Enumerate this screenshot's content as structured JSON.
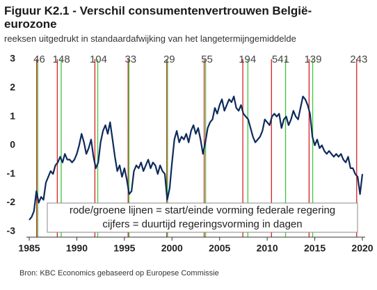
{
  "chart_data": {
    "type": "line",
    "title": "Figuur K2.1 - Verschil consumentenvertrouwen België-eurozone",
    "subtitle": "reeksen uitgedrukt in standaardafwijking van het langetermijngemiddelde",
    "source": "Bron: KBC Economics gebaseerd op Europese Commissie",
    "legend_lines": [
      "rode/groene lijnen = start/einde vorming federale regering",
      "cijfers = duurtijd regeringsvorming in dagen"
    ],
    "color": "#0d2a5c",
    "start_color": "#d62020",
    "end_color": "#3cc83c",
    "xlim": [
      1985,
      2020
    ],
    "xticks": [
      1985,
      1990,
      1995,
      2000,
      2005,
      2010,
      2015,
      2020
    ],
    "ylim": [
      -3.2,
      3
    ],
    "yticks": [
      -3,
      -2,
      -1,
      0,
      1,
      2,
      3
    ],
    "formations": [
      {
        "start": 1985.78,
        "end": 1985.9,
        "days": 46
      },
      {
        "start": 1987.95,
        "end": 1988.36,
        "days": 148
      },
      {
        "start": 1991.9,
        "end": 1992.2,
        "days": 104
      },
      {
        "start": 1995.39,
        "end": 1995.48,
        "days": 33
      },
      {
        "start": 1999.45,
        "end": 1999.53,
        "days": 29
      },
      {
        "start": 2003.38,
        "end": 2003.53,
        "days": 55
      },
      {
        "start": 2007.44,
        "end": 2007.97,
        "days": 194
      },
      {
        "start": 2010.45,
        "end": 2011.93,
        "days": 541
      },
      {
        "start": 2014.4,
        "end": 2014.78,
        "days": 139
      },
      {
        "start": 2019.4,
        "end": null,
        "days": 243
      }
    ],
    "x": [
      1985,
      1985.25,
      1985.5,
      1985.75,
      1986,
      1986.25,
      1986.5,
      1986.75,
      1987,
      1987.25,
      1987.5,
      1987.75,
      1988,
      1988.25,
      1988.5,
      1988.75,
      1989,
      1989.25,
      1989.5,
      1989.75,
      1990,
      1990.25,
      1990.5,
      1990.75,
      1991,
      1991.25,
      1991.5,
      1991.75,
      1992,
      1992.25,
      1992.5,
      1992.75,
      1993,
      1993.25,
      1993.5,
      1993.75,
      1994,
      1994.25,
      1994.5,
      1994.75,
      1995,
      1995.25,
      1995.5,
      1995.75,
      1996,
      1996.25,
      1996.5,
      1996.75,
      1997,
      1997.25,
      1997.5,
      1997.75,
      1998,
      1998.25,
      1998.5,
      1998.75,
      1999,
      1999.25,
      1999.5,
      1999.75,
      2000,
      2000.25,
      2000.5,
      2000.75,
      2001,
      2001.25,
      2001.5,
      2001.75,
      2002,
      2002.25,
      2002.5,
      2002.75,
      2003,
      2003.25,
      2003.5,
      2003.75,
      2004,
      2004.25,
      2004.5,
      2004.75,
      2005,
      2005.25,
      2005.5,
      2005.75,
      2006,
      2006.25,
      2006.5,
      2006.75,
      2007,
      2007.25,
      2007.5,
      2007.75,
      2008,
      2008.25,
      2008.5,
      2008.75,
      2009,
      2009.25,
      2009.5,
      2009.75,
      2010,
      2010.25,
      2010.5,
      2010.75,
      2011,
      2011.25,
      2011.5,
      2011.75,
      2012,
      2012.25,
      2012.5,
      2012.75,
      2013,
      2013.25,
      2013.5,
      2013.75,
      2014,
      2014.25,
      2014.5,
      2014.75,
      2015,
      2015.25,
      2015.5,
      2015.75,
      2016,
      2016.25,
      2016.5,
      2016.75,
      2017,
      2017.25,
      2017.5,
      2017.75,
      2018,
      2018.25,
      2018.5,
      2018.75,
      2019,
      2019.25,
      2019.5,
      2019.75,
      2020
    ],
    "values": [
      -2.6,
      -2.5,
      -2.3,
      -1.6,
      -2.0,
      -1.8,
      -1.9,
      -1.3,
      -1.1,
      -0.9,
      -1.0,
      -0.7,
      -0.6,
      -0.4,
      -0.6,
      -0.3,
      -0.5,
      -0.5,
      -0.6,
      -0.5,
      -0.3,
      0.0,
      0.4,
      0.1,
      -0.3,
      -0.1,
      0.2,
      -0.4,
      -0.8,
      -0.6,
      0.1,
      0.5,
      0.7,
      0.4,
      0.8,
      0.2,
      -0.4,
      -0.9,
      -0.7,
      -1.1,
      -0.8,
      -1.2,
      -1.7,
      -1.6,
      -0.9,
      -0.7,
      -0.8,
      -0.6,
      -0.9,
      -0.7,
      -0.5,
      -0.8,
      -0.6,
      -0.7,
      -1.0,
      -0.7,
      -0.9,
      -1.0,
      -1.9,
      -1.5,
      -0.6,
      0.2,
      0.5,
      0.1,
      0.3,
      0.2,
      0.4,
      0.1,
      0.5,
      0.7,
      0.4,
      0.6,
      0.2,
      -0.3,
      0.1,
      0.6,
      0.8,
      0.9,
      1.3,
      1.1,
      1.4,
      1.6,
      1.2,
      1.4,
      1.6,
      1.5,
      1.7,
      1.3,
      1.2,
      1.4,
      1.1,
      1.0,
      0.9,
      0.6,
      0.3,
      0.1,
      0.2,
      0.3,
      0.5,
      0.9,
      0.8,
      0.7,
      1.0,
      1.1,
      1.0,
      1.1,
      0.6,
      0.9,
      1.0,
      0.7,
      0.9,
      1.2,
      1.0,
      0.9,
      1.3,
      1.7,
      1.6,
      1.4,
      1.1,
      0.3,
      0.0,
      0.2,
      -0.1,
      0.0,
      -0.2,
      -0.3,
      -0.2,
      -0.3,
      -0.4,
      -0.3,
      -0.4,
      -0.3,
      -0.5,
      -0.6,
      -0.4,
      -0.8,
      -0.8,
      -1.0,
      -1.1,
      -1.7,
      -1.0
    ]
  }
}
